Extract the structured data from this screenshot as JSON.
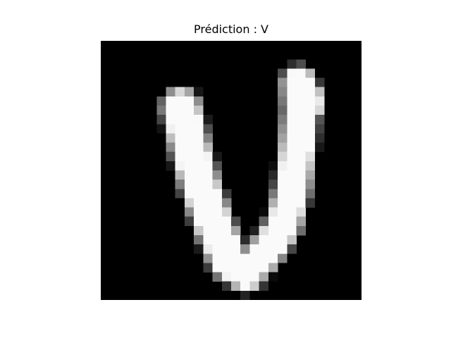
{
  "figure": {
    "title": "Prédiction : V"
  },
  "image": {
    "background_color": "#000000",
    "grid_size": 28,
    "content": "handwritten-letter-v"
  }
}
